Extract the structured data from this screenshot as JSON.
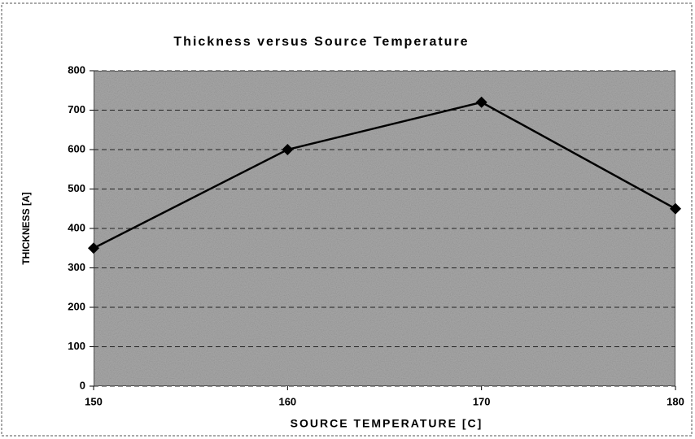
{
  "chart_data": {
    "type": "line",
    "title": "Thickness versus Source Temperature",
    "xlabel": "SOURCE TEMPERATURE [C]",
    "ylabel": "THICKNESS [A]",
    "x": [
      150,
      160,
      170,
      180
    ],
    "series": [
      {
        "name": "Thickness",
        "color": "#000000",
        "values": [
          350,
          600,
          720,
          450
        ]
      }
    ],
    "xlim": [
      150,
      180
    ],
    "xticks": [
      150,
      160,
      170,
      180
    ],
    "ylim": [
      0,
      800
    ],
    "yticks": [
      0,
      100,
      200,
      300,
      400,
      500,
      600,
      700,
      800
    ],
    "grid": true
  }
}
